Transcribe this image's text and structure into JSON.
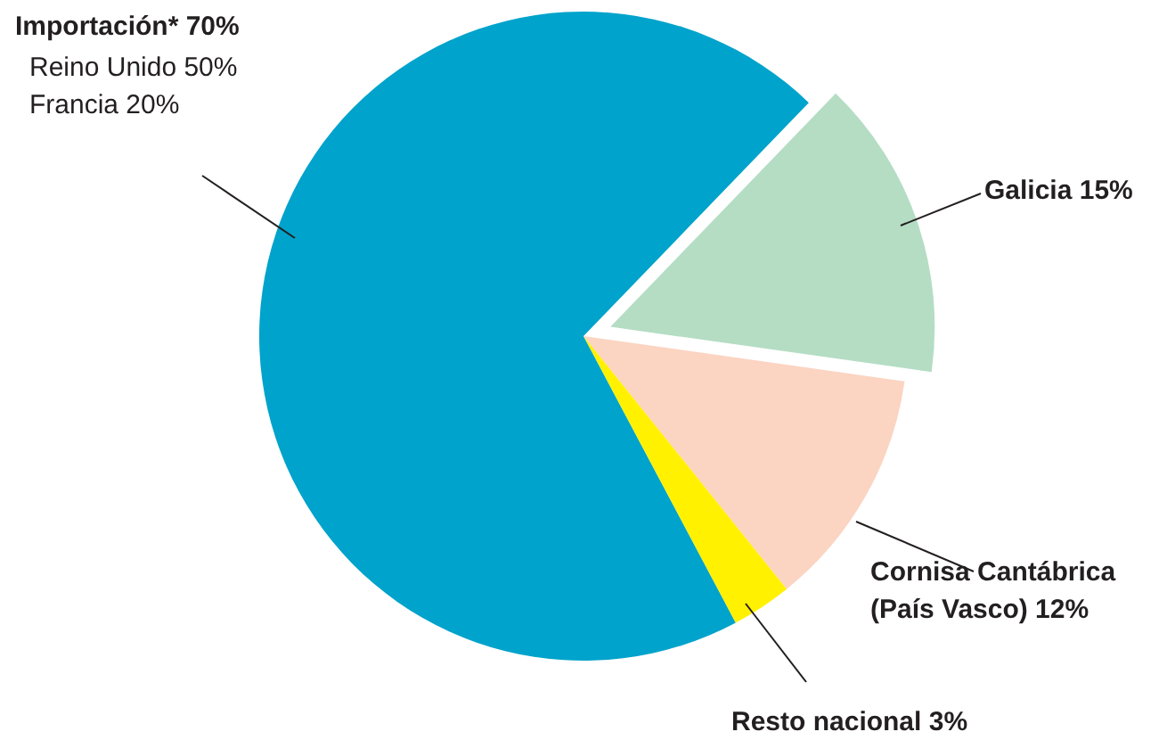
{
  "chart_data": {
    "type": "pie",
    "categories": [
      "Importación*",
      "Galicia",
      "Cornisa Cantábrica (País Vasco)",
      "Resto nacional"
    ],
    "values": [
      70,
      15,
      12,
      3
    ],
    "colors": [
      "#00a3cb",
      "#b4ddc4",
      "#fbd4c2",
      "#fff100"
    ],
    "value_labels": [
      "70%",
      "15%",
      "12%",
      "3%"
    ],
    "annotations": [
      "Reino Unido 50%",
      "Francia 20%"
    ]
  }
}
